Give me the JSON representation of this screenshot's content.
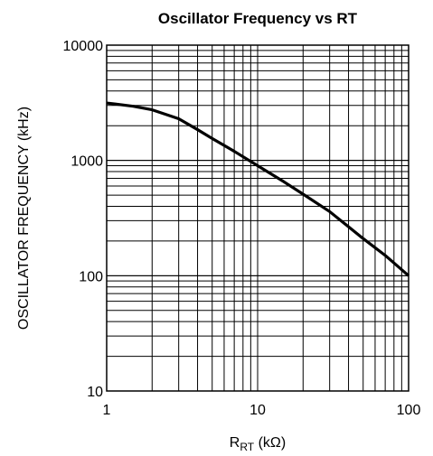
{
  "chart_data": {
    "type": "line",
    "title": "Oscillator Frequency vs RT",
    "xlabel": {
      "main": "R",
      "subscript": "RT",
      "unit": " (kΩ)"
    },
    "ylabel": "OSCILLATOR FREQUENCY (kHz)",
    "xscale": "log",
    "yscale": "log",
    "xlim": [
      1,
      100
    ],
    "ylim": [
      10,
      10000
    ],
    "xticks": [
      "1",
      "10",
      "100"
    ],
    "yticks": [
      "10",
      "100",
      "1000",
      "10000"
    ],
    "grid": true,
    "series": [
      {
        "x": [
          1,
          1.5,
          2,
          3,
          4,
          5,
          7,
          10,
          15,
          20,
          30,
          50,
          70,
          100
        ],
        "y": [
          3150,
          2950,
          2750,
          2300,
          1850,
          1550,
          1200,
          900,
          650,
          510,
          360,
          210,
          150,
          100
        ]
      }
    ]
  }
}
